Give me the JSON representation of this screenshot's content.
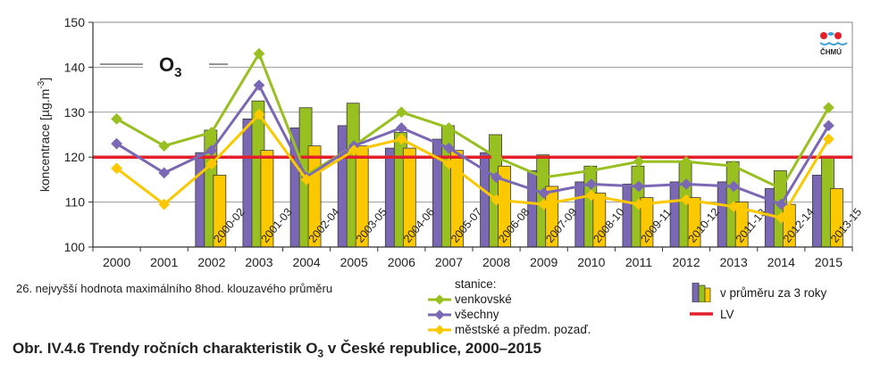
{
  "chart_data": {
    "type": "bar",
    "title": "O3",
    "title_main": "O",
    "title_sub": "3",
    "ylabel": "koncentrace [µg.m",
    "ylabel_sup": "-3",
    "ylabel_end": "]",
    "ylim": [
      100,
      150
    ],
    "yticks": [
      100,
      110,
      120,
      130,
      140,
      150
    ],
    "grid": true,
    "legend_placement": "bottom",
    "years": [
      "2000",
      "2001",
      "2002",
      "2003",
      "2004",
      "2005",
      "2006",
      "2007",
      "2008",
      "2009",
      "2010",
      "2011",
      "2012",
      "2013",
      "2014",
      "2015"
    ],
    "bar_labels": [
      "",
      "",
      "2000-02",
      "2001-03",
      "2002-04",
      "2003-05",
      "2004-06",
      "2005-07",
      "2006-08",
      "2007-09",
      "2008-10",
      "2009-11",
      "2010-12",
      "2011-13",
      "2012-14",
      "2013-15"
    ],
    "bars": [
      {
        "name": "všechny",
        "color": "#7b68b5",
        "values": [
          null,
          null,
          121,
          128.5,
          126.5,
          127,
          122,
          124,
          121,
          117,
          114.5,
          114,
          114.5,
          114.5,
          113,
          116
        ]
      },
      {
        "name": "venkovské",
        "color": "#99c021",
        "values": [
          null,
          null,
          126,
          132.5,
          131,
          132,
          125.5,
          127,
          125,
          120.5,
          118,
          118,
          119,
          119,
          117,
          120
        ]
      },
      {
        "name": "městské a předm. pozaď.",
        "color": "#fcc800",
        "values": [
          null,
          null,
          116,
          121.5,
          122.5,
          122.5,
          122,
          121.5,
          118,
          113.5,
          112,
          111,
          111,
          110,
          109.5,
          113
        ]
      }
    ],
    "lines": [
      {
        "name": "venkovské",
        "color": "#99c021",
        "values": [
          128.5,
          122.5,
          125.5,
          143,
          116,
          122.5,
          130,
          126.5,
          120,
          115.5,
          117,
          119,
          119,
          118,
          113,
          131
        ]
      },
      {
        "name": "všechny",
        "color": "#7b68b5",
        "values": [
          123,
          116.5,
          121.5,
          136,
          115.5,
          122.5,
          126.5,
          122,
          115.5,
          112,
          114,
          113.5,
          114,
          113.5,
          109.5,
          127
        ]
      },
      {
        "name": "městské a předm. pozaď.",
        "color": "#fcc800",
        "values": [
          117.5,
          109.5,
          118.5,
          129.5,
          115,
          121.5,
          124,
          118.5,
          110.5,
          109.5,
          111.5,
          109.5,
          110.5,
          109,
          106.5,
          124
        ]
      }
    ],
    "limit_value": {
      "name": "LV",
      "value": 120,
      "color": "#e3202a"
    }
  },
  "logo": {
    "text": "ČHMÚ"
  },
  "note": "26. nejvyšší hodnota maximálního 8hod. klouzavého průměru",
  "legend": {
    "title": "stanice:",
    "items": [
      {
        "label": "venkovské",
        "color": "#99c021"
      },
      {
        "label": "všechny",
        "color": "#7b68b5"
      },
      {
        "label": "městské a předm. pozaď.",
        "color": "#fcc800"
      }
    ],
    "bars_label": "v průměru za 3 roky",
    "lv_label": "LV"
  },
  "caption": {
    "prefix": "Obr. IV.4.6  Trendy ročních charakteristik O",
    "sub": "3",
    "suffix": " v České republice, 2000–2015"
  }
}
